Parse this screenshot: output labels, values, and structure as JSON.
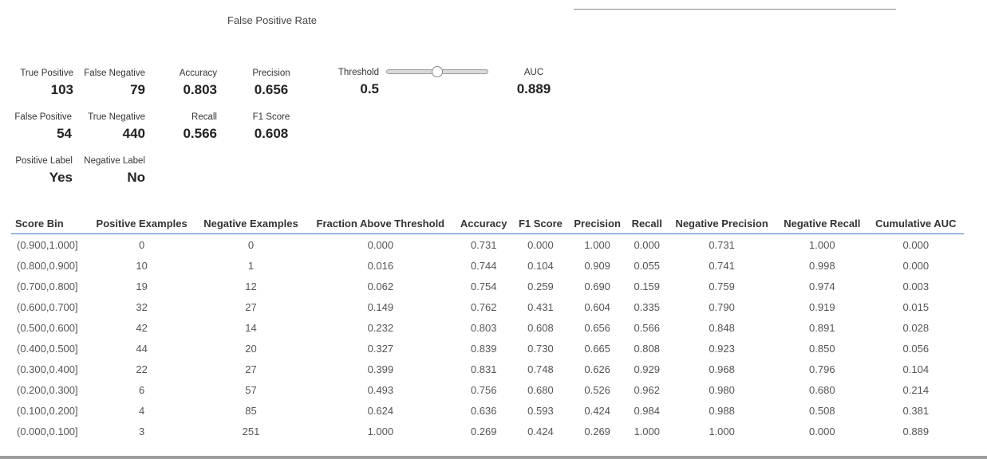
{
  "chart": {
    "xaxis_title": "False Positive Rate"
  },
  "confusion": {
    "true_positive": {
      "label": "True Positive",
      "value": "103"
    },
    "false_negative": {
      "label": "False Negative",
      "value": "79"
    },
    "false_positive": {
      "label": "False Positive",
      "value": "54"
    },
    "true_negative": {
      "label": "True Negative",
      "value": "440"
    },
    "positive_label": {
      "label": "Positive Label",
      "value": "Yes"
    },
    "negative_label": {
      "label": "Negative Label",
      "value": "No"
    }
  },
  "metrics": {
    "accuracy": {
      "label": "Accuracy",
      "value": "0.803"
    },
    "precision": {
      "label": "Precision",
      "value": "0.656"
    },
    "recall": {
      "label": "Recall",
      "value": "0.566"
    },
    "f1": {
      "label": "F1 Score",
      "value": "0.608"
    },
    "threshold": {
      "label": "Threshold",
      "value": "0.5",
      "slider_fraction": 0.5
    },
    "auc": {
      "label": "AUC",
      "value": "0.889"
    }
  },
  "table": {
    "headers": [
      "Score Bin",
      "Positive Examples",
      "Negative Examples",
      "Fraction Above Threshold",
      "Accuracy",
      "F1 Score",
      "Precision",
      "Recall",
      "Negative Precision",
      "Negative Recall",
      "Cumulative AUC"
    ],
    "rows": [
      [
        "(0.900,1.000]",
        "0",
        "0",
        "0.000",
        "0.731",
        "0.000",
        "1.000",
        "0.000",
        "0.731",
        "1.000",
        "0.000"
      ],
      [
        "(0.800,0.900]",
        "10",
        "1",
        "0.016",
        "0.744",
        "0.104",
        "0.909",
        "0.055",
        "0.741",
        "0.998",
        "0.000"
      ],
      [
        "(0.700,0.800]",
        "19",
        "12",
        "0.062",
        "0.754",
        "0.259",
        "0.690",
        "0.159",
        "0.759",
        "0.974",
        "0.003"
      ],
      [
        "(0.600,0.700]",
        "32",
        "27",
        "0.149",
        "0.762",
        "0.431",
        "0.604",
        "0.335",
        "0.790",
        "0.919",
        "0.015"
      ],
      [
        "(0.500,0.600]",
        "42",
        "14",
        "0.232",
        "0.803",
        "0.608",
        "0.656",
        "0.566",
        "0.848",
        "0.891",
        "0.028"
      ],
      [
        "(0.400,0.500]",
        "44",
        "20",
        "0.327",
        "0.839",
        "0.730",
        "0.665",
        "0.808",
        "0.923",
        "0.850",
        "0.056"
      ],
      [
        "(0.300,0.400]",
        "22",
        "27",
        "0.399",
        "0.831",
        "0.748",
        "0.626",
        "0.929",
        "0.968",
        "0.796",
        "0.104"
      ],
      [
        "(0.200,0.300]",
        "6",
        "57",
        "0.493",
        "0.756",
        "0.680",
        "0.526",
        "0.962",
        "0.980",
        "0.680",
        "0.214"
      ],
      [
        "(0.100,0.200]",
        "4",
        "85",
        "0.624",
        "0.636",
        "0.593",
        "0.424",
        "0.984",
        "0.988",
        "0.508",
        "0.381"
      ],
      [
        "(0.000,0.100]",
        "3",
        "251",
        "1.000",
        "0.269",
        "0.424",
        "0.269",
        "1.000",
        "1.000",
        "0.000",
        "0.889"
      ]
    ]
  }
}
